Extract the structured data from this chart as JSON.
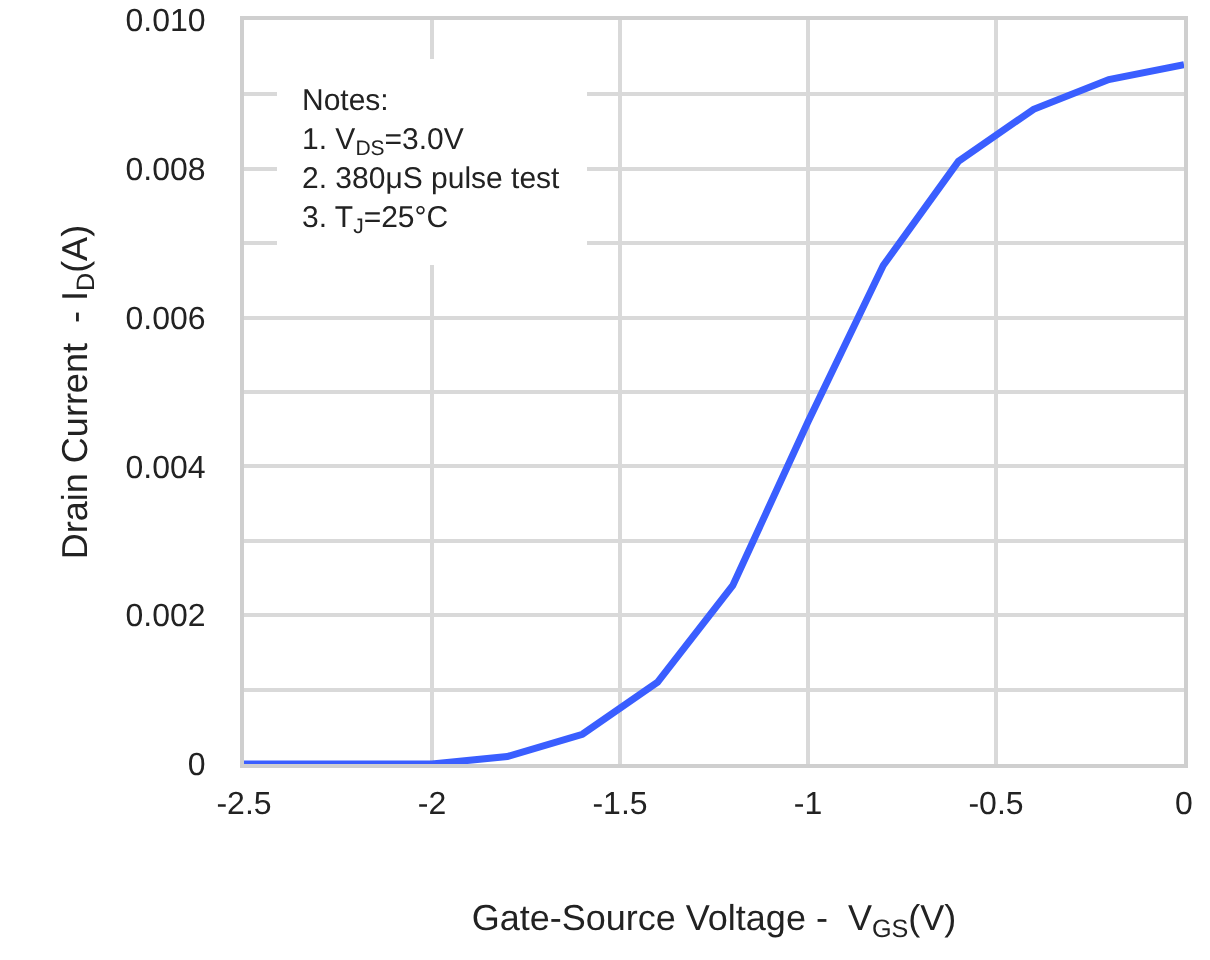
{
  "chart_data": {
    "type": "line",
    "xlabel": "Gate-Source Voltage -  V$_{GS}$(V)",
    "ylabel": "Drain Current  - I$_{D}$(A)",
    "x": [
      -2.5,
      -2,
      -1.8,
      -1.6,
      -1.4,
      -1.2,
      -1.0,
      -0.8,
      -0.6,
      -0.4,
      -0.2,
      0
    ],
    "series": [
      {
        "color": "#3a5eff",
        "values": [
          0,
          0,
          0.0001,
          0.0004,
          0.0011,
          0.0024,
          0.0046,
          0.0067,
          0.0081,
          0.0088,
          0.0092,
          0.0094
        ]
      }
    ],
    "xlim": [
      -2.5,
      0
    ],
    "xticks": [
      -2.5,
      -2,
      -1.5,
      -1,
      -0.5,
      0
    ],
    "ylim": [
      0,
      0.01
    ],
    "yticks": [
      0,
      {
        "value": 0.001,
        "label": null
      },
      0.002,
      {
        "value": 0.003,
        "label": null
      },
      0.004,
      {
        "value": 0.005,
        "label": null
      },
      0.006,
      {
        "value": 0.007,
        "label": null
      },
      0.008,
      {
        "value": 0.009,
        "label": null
      },
      {
        "value": 0.01,
        "label": "0.010"
      }
    ],
    "annotations": [
      "Notes:",
      "1. V$_{DS}$=3.0V",
      "2. 380μS pulse test",
      "3. T$_{J}$=25°C"
    ],
    "grid": true,
    "marker": "none",
    "line_style": "solid"
  }
}
